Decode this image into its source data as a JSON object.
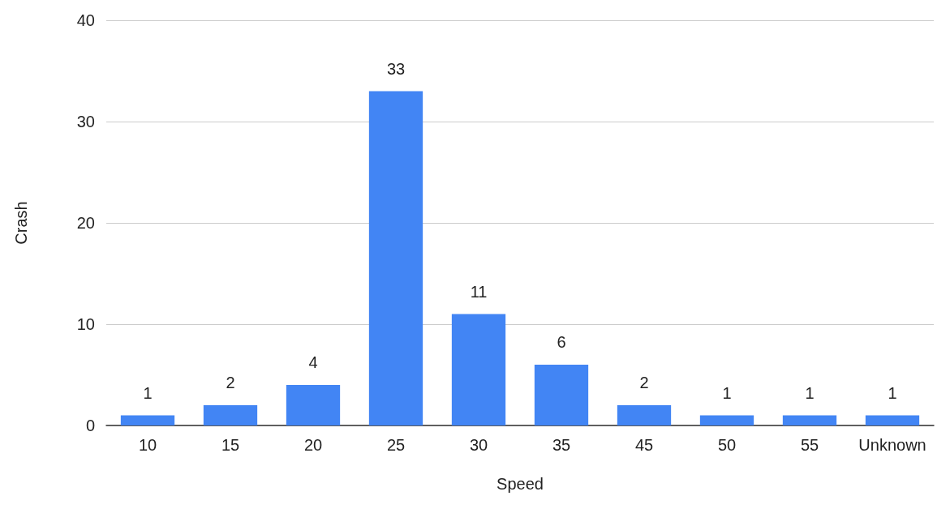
{
  "chart_data": {
    "type": "bar",
    "xlabel": "Speed",
    "ylabel": "Crash",
    "categories": [
      "10",
      "15",
      "20",
      "25",
      "30",
      "35",
      "45",
      "50",
      "55",
      "Unknown"
    ],
    "values": [
      1,
      2,
      4,
      33,
      11,
      6,
      2,
      1,
      1,
      1
    ],
    "color": "#4285f4",
    "ylim": [
      0,
      40
    ],
    "yticks": [
      0,
      10,
      20,
      30,
      40
    ],
    "grid": "y",
    "data_labels": true
  }
}
